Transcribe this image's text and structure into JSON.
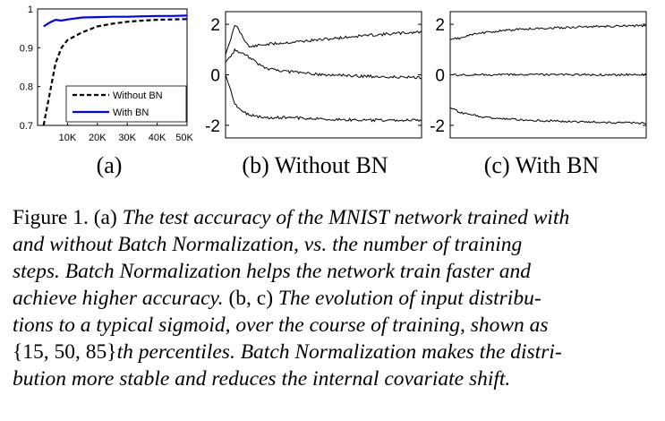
{
  "panels": {
    "a": {
      "label": "(a)",
      "yticks": [
        "1",
        "0.9",
        "0.8",
        "0.7"
      ],
      "xticks": [
        "10K",
        "20K",
        "30K",
        "40K",
        "50K"
      ],
      "legend": [
        "Without BN",
        "With BN"
      ]
    },
    "b": {
      "label": "(b) Without BN",
      "yticks": [
        "2",
        "0",
        "-2"
      ]
    },
    "c": {
      "label": "(c) With BN",
      "yticks": [
        "2",
        "0",
        "-2"
      ]
    }
  },
  "caption": {
    "figure_label": "Figure 1.",
    "lines": [
      [
        "(a)",
        " The test accuracy of the MNIST network trained with"
      ],
      [
        "and without Batch Normalization, vs.  the number of training"
      ],
      [
        "steps.  Batch Normalization helps the network train faster and"
      ],
      [
        "achieve higher accuracy.",
        " (b, c)",
        " The evolution of input distribu-"
      ],
      [
        "tions to a typical sigmoid, over the course of training, shown as"
      ],
      [
        "{15, 50, 85}",
        "th percentiles. Batch Normalization makes the distri-"
      ],
      [
        "bution more stable and reduces the internal covariate shift."
      ]
    ]
  },
  "chart_data": [
    {
      "type": "line",
      "xlim": [
        0,
        50000
      ],
      "ylim": [
        0.7,
        1.0
      ],
      "x": [
        2000,
        4000,
        6000,
        8000,
        10000,
        15000,
        20000,
        25000,
        30000,
        35000,
        40000,
        45000,
        50000
      ],
      "series": [
        {
          "name": "Without BN",
          "style": "dashed",
          "color": "#000000",
          "values": [
            0.7,
            0.78,
            0.86,
            0.9,
            0.92,
            0.94,
            0.955,
            0.962,
            0.967,
            0.97,
            0.972,
            0.973,
            0.974
          ]
        },
        {
          "name": "With BN",
          "style": "solid",
          "color": "#0000ff",
          "values": [
            0.955,
            0.965,
            0.972,
            0.97,
            0.973,
            0.978,
            0.979,
            0.98,
            0.98,
            0.981,
            0.982,
            0.982,
            0.983
          ]
        }
      ],
      "legend": "bottom-right"
    },
    {
      "type": "line",
      "ylim": [
        -2.5,
        2.5
      ],
      "x": [
        0,
        0.05,
        0.12,
        0.2,
        0.35,
        0.5,
        0.7,
        1.0
      ],
      "series": [
        {
          "percentile": 85,
          "values": [
            0.8,
            2.0,
            1.1,
            1.2,
            1.3,
            1.4,
            1.55,
            1.7
          ]
        },
        {
          "percentile": 50,
          "values": [
            0.5,
            1.0,
            0.7,
            0.25,
            0.1,
            0.0,
            -0.05,
            -0.1
          ]
        },
        {
          "percentile": 15,
          "values": [
            0.0,
            -1.2,
            -1.6,
            -1.7,
            -1.7,
            -1.75,
            -1.8,
            -1.8
          ]
        }
      ]
    },
    {
      "type": "line",
      "ylim": [
        -2.5,
        2.5
      ],
      "x": [
        0,
        0.05,
        0.12,
        0.2,
        0.35,
        0.5,
        0.7,
        1.0
      ],
      "series": [
        {
          "percentile": 85,
          "values": [
            1.4,
            1.45,
            1.6,
            1.7,
            1.8,
            1.85,
            1.9,
            1.95
          ]
        },
        {
          "percentile": 50,
          "values": [
            0.0,
            0.0,
            0.0,
            0.0,
            0.0,
            0.0,
            0.0,
            0.0
          ]
        },
        {
          "percentile": 15,
          "values": [
            -1.3,
            -1.5,
            -1.6,
            -1.7,
            -1.78,
            -1.82,
            -1.87,
            -1.92
          ]
        }
      ]
    }
  ]
}
